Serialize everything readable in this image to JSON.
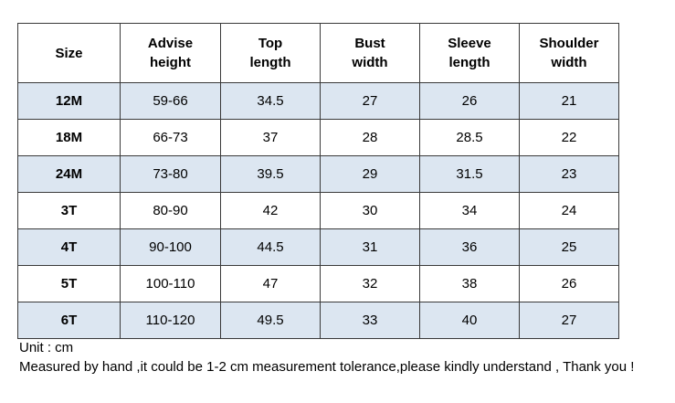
{
  "table": {
    "headers": [
      [
        "Size"
      ],
      [
        "Advise",
        "height"
      ],
      [
        "Top",
        "length"
      ],
      [
        "Bust",
        "width"
      ],
      [
        "Sleeve",
        "length"
      ],
      [
        "Shoulder",
        "width"
      ]
    ],
    "rows": [
      [
        "12M",
        "59-66",
        "34.5",
        "27",
        "26",
        "21"
      ],
      [
        "18M",
        "66-73",
        "37",
        "28",
        "28.5",
        "22"
      ],
      [
        "24M",
        "73-80",
        "39.5",
        "29",
        "31.5",
        "23"
      ],
      [
        "3T",
        "80-90",
        "42",
        "30",
        "34",
        "24"
      ],
      [
        "4T",
        "90-100",
        "44.5",
        "31",
        "36",
        "25"
      ],
      [
        "5T",
        "100-110",
        "47",
        "32",
        "38",
        "26"
      ],
      [
        "6T",
        "110-120",
        "49.5",
        "33",
        "40",
        "27"
      ]
    ],
    "colors": {
      "stripe": "#dce6f1",
      "border": "#3a3a3a",
      "background": "#ffffff"
    }
  },
  "notes": {
    "unit": "Unit : cm",
    "measurement": "Measured by hand ,it could be 1-2 cm measurement tolerance,please kindly understand , Thank you !"
  }
}
